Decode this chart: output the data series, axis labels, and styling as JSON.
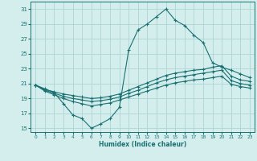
{
  "xlabel": "Humidex (Indice chaleur)",
  "xlim": [
    -0.5,
    23.5
  ],
  "ylim": [
    14.5,
    32
  ],
  "xticks": [
    0,
    1,
    2,
    3,
    4,
    5,
    6,
    7,
    8,
    9,
    10,
    11,
    12,
    13,
    14,
    15,
    16,
    17,
    18,
    19,
    20,
    21,
    22,
    23
  ],
  "yticks": [
    15,
    17,
    19,
    21,
    23,
    25,
    27,
    29,
    31
  ],
  "bg_color": "#d4eeee",
  "grid_color": "#aed4d4",
  "line_color": "#1a7070",
  "line1_x": [
    0,
    1,
    2,
    3,
    4,
    5,
    6,
    7,
    8,
    9,
    10,
    11,
    12,
    13,
    14,
    15,
    16,
    17,
    18,
    19,
    20,
    21,
    22,
    23
  ],
  "line1_y": [
    20.8,
    20.3,
    19.8,
    18.3,
    16.8,
    16.3,
    15.0,
    15.6,
    16.3,
    17.8,
    25.5,
    28.2,
    29.0,
    30.0,
    31.0,
    29.5,
    28.8,
    27.5,
    26.5,
    23.8,
    23.2,
    22.8,
    22.3,
    21.8
  ],
  "line2_x": [
    0,
    1,
    2,
    3,
    4,
    5,
    6,
    7,
    8,
    9,
    10,
    11,
    12,
    13,
    14,
    15,
    16,
    17,
    18,
    19,
    20,
    21,
    22,
    23
  ],
  "line2_y": [
    20.8,
    20.2,
    19.9,
    19.6,
    19.4,
    19.2,
    19.0,
    19.1,
    19.3,
    19.6,
    20.1,
    20.6,
    21.1,
    21.6,
    22.1,
    22.4,
    22.6,
    22.8,
    22.9,
    23.2,
    23.4,
    22.0,
    21.5,
    21.3
  ],
  "line3_x": [
    0,
    1,
    2,
    3,
    4,
    5,
    6,
    7,
    8,
    9,
    10,
    11,
    12,
    13,
    14,
    15,
    16,
    17,
    18,
    19,
    20,
    21,
    22,
    23
  ],
  "line3_y": [
    20.8,
    20.1,
    19.7,
    19.3,
    19.0,
    18.8,
    18.6,
    18.7,
    18.9,
    19.2,
    19.7,
    20.1,
    20.6,
    21.1,
    21.5,
    21.8,
    22.0,
    22.2,
    22.4,
    22.6,
    22.8,
    21.4,
    21.0,
    20.8
  ],
  "line4_x": [
    0,
    1,
    2,
    3,
    4,
    5,
    6,
    7,
    8,
    9,
    10,
    11,
    12,
    13,
    14,
    15,
    16,
    17,
    18,
    19,
    20,
    21,
    22,
    23
  ],
  "line4_y": [
    20.8,
    20.0,
    19.5,
    19.0,
    18.6,
    18.3,
    18.0,
    18.2,
    18.4,
    18.8,
    19.2,
    19.6,
    20.0,
    20.4,
    20.8,
    21.1,
    21.3,
    21.5,
    21.6,
    21.8,
    22.0,
    20.9,
    20.6,
    20.4
  ]
}
